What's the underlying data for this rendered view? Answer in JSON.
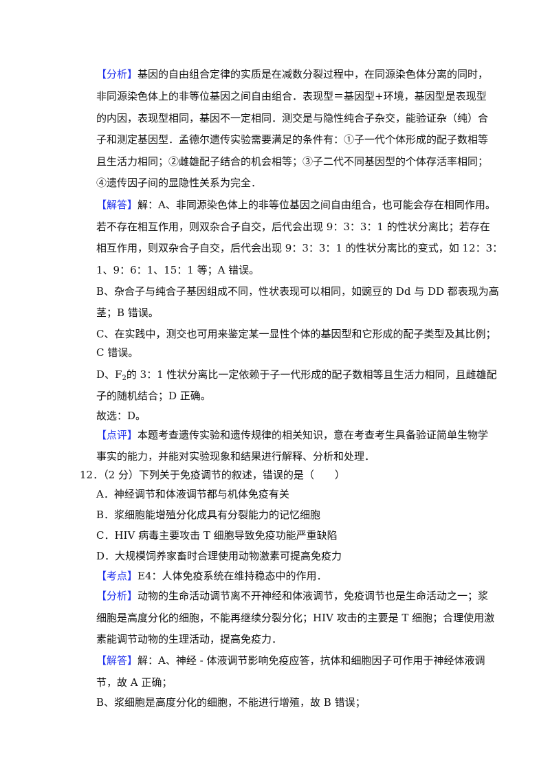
{
  "colors": {
    "tag": "#2233ee",
    "text": "#111111"
  },
  "lines": [
    {
      "tag": "【分析】",
      "text": "基因的自由组合定律的实质是在减数分裂过程中，在同源染色体分离的同时，"
    },
    {
      "text": "非同源染色体上的非等位基因之间自由组合．表现型＝基因型+环境，基因型是表现型"
    },
    {
      "text": "的内因，表现型相同，基因不一定相同．测交是与隐性纯合子杂交，能验证杂（纯）合"
    },
    {
      "text": "子和测定基因型．孟德尔遗传实验需要满足的条件有：①子一代个体形成的配子数相等"
    },
    {
      "text": "且生活力相同；②雌雄配子结合的机会相等；③子二代不同基因型的个体存活率相同；"
    },
    {
      "text": "④遗传因子间的显隐性关系为完全．"
    },
    {
      "tag": "【解答】",
      "text": "解：A、非同源染色体上的非等位基因之间自由组合，也可能会存在相同作用。"
    },
    {
      "text": "若不存在相互作用，则双杂合子自交，后代会出现 9：3：3：1 的性状分离比；若存在"
    },
    {
      "text": "相互作用，则双杂合子自交，后代会出现 9：3：3：1 的性状分离比的变式，如 12：3："
    },
    {
      "text": "1、9：6：1、15：1 等；A 错误。"
    },
    {
      "text": "B、杂合子与纯合子基因组成不同，性状表现可以相同，如豌豆的 Dd 与 DD 都表现为高"
    },
    {
      "text": "茎；B 错误。"
    },
    {
      "text": "C、在实践中，测交也可用来鉴定某一显性个体的基因型和它形成的配子类型及其比例；"
    },
    {
      "text": "C 错误。"
    },
    {
      "text": "D、F",
      "sub": "2",
      "rest": "的 3：1 性状分离比一定依赖于子一代形成的配子数相等且生活力相同，且雌雄配"
    },
    {
      "text": "子的随机结合；D 正确。"
    },
    {
      "text": "故选：D。"
    },
    {
      "tag": "【点评】",
      "text": "本题考查遗传实验和遗传规律的相关知识，意在考查考生具备验证简单生物学"
    },
    {
      "text": "事实的能力，并能对实验现象和结果进行解释、分析和处理．"
    },
    {
      "text": "12．（2 分）下列关于免疫调节的叙述，错误的是（　　）"
    },
    {
      "text": "A．神经调节和体液调节都与机体免疫有关"
    },
    {
      "text": "B．浆细胞能增殖分化成具有分裂能力的记忆细胞"
    },
    {
      "text": "C．HIV 病毒主要攻击 T 细胞导致免疫功能严重缺陷"
    },
    {
      "text": "D．大规模饲养家畜时合理使用动物激素可提高免疫力"
    },
    {
      "tag": "【考点】",
      "text": "E4：人体免疫系统在维持稳态中的作用．"
    },
    {
      "tag": "【分析】",
      "text": "动物的生命活动调节离不开神经和体液调节，免疫调节也是生命活动之一；浆"
    },
    {
      "text": "细胞是高度分化的细胞，不能再继续分裂分化；HIV 攻击的主要是 T 细胞；合理使用激"
    },
    {
      "text": "素能调节动物的生理活动，提高免疫力．"
    },
    {
      "tag": "【解答】",
      "text": "解：A、神经 - 体液调节影响免疫应答，抗体和细胞因子可作用于神经体液调"
    },
    {
      "text": "节，故 A 正确；"
    },
    {
      "text": "B、浆细胞是高度分化的细胞，不能进行增殖，故 B 错误；"
    }
  ]
}
